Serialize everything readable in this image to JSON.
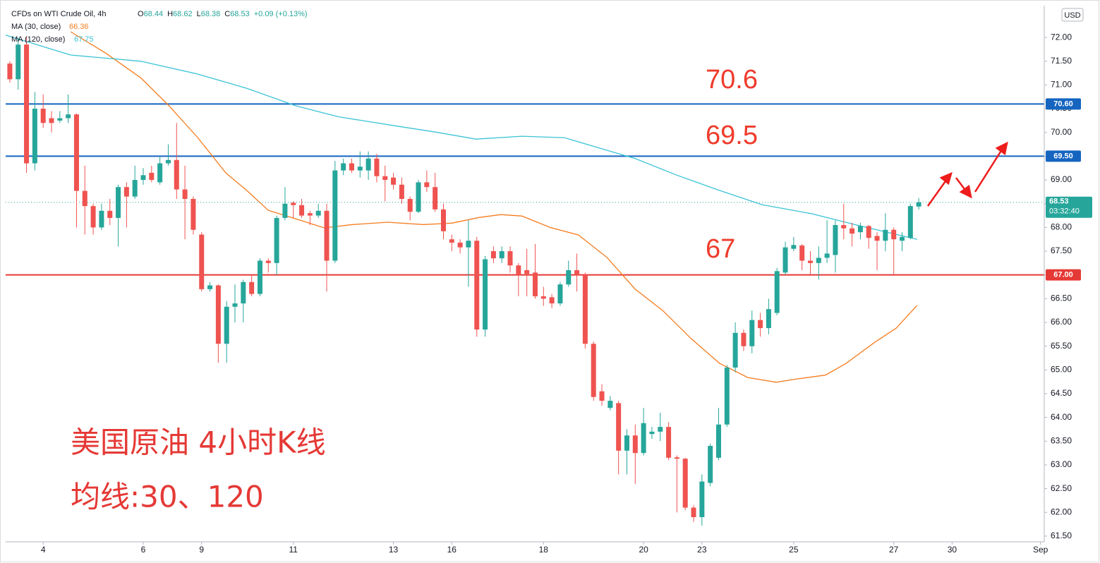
{
  "chart_data": {
    "type": "candlestick",
    "symbol": "CFDs on WTI Crude Oil, 4h",
    "ohlc_legend": [
      {
        "key": "O",
        "value": "68.44"
      },
      {
        "key": "H",
        "value": "68.62"
      },
      {
        "key": "L",
        "value": "68.38"
      },
      {
        "key": "C",
        "value": "68.53"
      }
    ],
    "change_legend": "+0.09 (+0.13%)",
    "currency": "USD",
    "up_color": "#26a69a",
    "down_color": "#ef5350",
    "ohlc": [
      [
        71.45,
        71.5,
        71.05,
        71.12
      ],
      [
        71.12,
        72.0,
        70.9,
        71.85
      ],
      [
        71.85,
        72.0,
        69.15,
        69.35
      ],
      [
        69.35,
        70.85,
        69.2,
        70.5
      ],
      [
        70.5,
        70.8,
        70.1,
        70.2
      ],
      [
        70.3,
        70.45,
        70.0,
        70.2
      ],
      [
        70.25,
        70.45,
        70.2,
        70.3
      ],
      [
        70.3,
        70.8,
        70.2,
        70.38
      ],
      [
        70.38,
        70.4,
        68.0,
        68.77
      ],
      [
        68.77,
        69.3,
        67.85,
        68.45
      ],
      [
        68.45,
        68.5,
        67.85,
        68.0
      ],
      [
        68.0,
        68.5,
        67.95,
        68.35
      ],
      [
        68.35,
        68.6,
        68.05,
        68.2
      ],
      [
        68.2,
        68.9,
        67.6,
        68.85
      ],
      [
        68.85,
        68.95,
        68.0,
        68.65
      ],
      [
        68.65,
        69.3,
        68.6,
        69.0
      ],
      [
        69.0,
        69.25,
        68.9,
        69.1
      ],
      [
        69.15,
        69.3,
        68.95,
        69.0
      ],
      [
        68.95,
        69.5,
        68.9,
        69.35
      ],
      [
        69.35,
        69.75,
        69.3,
        69.42
      ],
      [
        69.42,
        70.2,
        68.6,
        68.8
      ],
      [
        68.8,
        69.3,
        67.75,
        68.6
      ],
      [
        68.6,
        68.65,
        67.85,
        67.95
      ],
      [
        67.85,
        67.9,
        66.65,
        66.7
      ],
      [
        66.7,
        66.85,
        66.65,
        66.78
      ],
      [
        66.78,
        66.8,
        65.15,
        65.55
      ],
      [
        65.55,
        66.45,
        65.15,
        66.33
      ],
      [
        66.33,
        66.8,
        66.0,
        66.4
      ],
      [
        66.4,
        66.9,
        66.0,
        66.85
      ],
      [
        66.85,
        67.0,
        66.55,
        66.6
      ],
      [
        66.6,
        67.35,
        66.55,
        67.3
      ],
      [
        67.3,
        67.35,
        67.05,
        67.25
      ],
      [
        67.25,
        68.25,
        67.0,
        68.2
      ],
      [
        68.2,
        68.85,
        68.15,
        68.5
      ],
      [
        68.52,
        68.55,
        68.2,
        68.47
      ],
      [
        68.47,
        68.6,
        68.2,
        68.25
      ],
      [
        68.3,
        68.35,
        68.05,
        68.25
      ],
      [
        68.25,
        68.5,
        68.2,
        68.35
      ],
      [
        68.35,
        68.5,
        66.65,
        67.3
      ],
      [
        67.3,
        69.4,
        67.25,
        69.2
      ],
      [
        69.2,
        69.45,
        69.1,
        69.35
      ],
      [
        69.35,
        69.45,
        69.15,
        69.2
      ],
      [
        69.2,
        69.6,
        69.05,
        69.28
      ],
      [
        69.2,
        69.6,
        69.0,
        69.45
      ],
      [
        69.45,
        69.55,
        68.95,
        69.08
      ],
      [
        69.08,
        69.3,
        68.55,
        69.0
      ],
      [
        69.05,
        69.15,
        68.8,
        68.9
      ],
      [
        68.9,
        69.05,
        68.5,
        68.6
      ],
      [
        68.6,
        68.65,
        68.15,
        68.33
      ],
      [
        68.33,
        69.0,
        68.3,
        68.95
      ],
      [
        68.95,
        69.2,
        68.75,
        68.85
      ],
      [
        68.85,
        69.15,
        68.33,
        68.38
      ],
      [
        68.38,
        68.5,
        67.75,
        67.92
      ],
      [
        67.75,
        67.85,
        67.5,
        67.68
      ],
      [
        67.68,
        67.75,
        67.45,
        67.58
      ],
      [
        67.58,
        68.15,
        66.75,
        67.72
      ],
      [
        67.72,
        67.8,
        65.7,
        65.85
      ],
      [
        65.85,
        67.4,
        65.7,
        67.33
      ],
      [
        67.5,
        67.6,
        67.25,
        67.35
      ],
      [
        67.35,
        67.6,
        67.25,
        67.5
      ],
      [
        67.5,
        67.6,
        67.05,
        67.2
      ],
      [
        67.2,
        67.25,
        66.55,
        67.0
      ],
      [
        67.1,
        67.55,
        66.55,
        67.02
      ],
      [
        67.05,
        67.65,
        66.5,
        66.55
      ],
      [
        66.55,
        66.75,
        66.35,
        66.5
      ],
      [
        66.53,
        66.6,
        66.3,
        66.4
      ],
      [
        66.4,
        66.85,
        66.35,
        66.8
      ],
      [
        66.8,
        67.3,
        66.75,
        67.1
      ],
      [
        67.1,
        67.45,
        66.65,
        67.0
      ],
      [
        67.0,
        67.05,
        65.45,
        65.55
      ],
      [
        65.55,
        65.6,
        64.35,
        64.43
      ],
      [
        64.55,
        64.7,
        64.25,
        64.35
      ],
      [
        64.2,
        64.45,
        64.15,
        64.35
      ],
      [
        64.3,
        64.35,
        62.8,
        63.3
      ],
      [
        63.3,
        63.75,
        62.8,
        63.62
      ],
      [
        63.62,
        63.85,
        62.6,
        63.25
      ],
      [
        63.25,
        64.2,
        63.2,
        63.88
      ],
      [
        63.65,
        63.8,
        63.55,
        63.7
      ],
      [
        63.7,
        64.1,
        63.5,
        63.8
      ],
      [
        63.8,
        63.9,
        63.1,
        63.15
      ],
      [
        63.16,
        63.2,
        62.0,
        63.13
      ],
      [
        63.13,
        63.15,
        62.05,
        62.1
      ],
      [
        62.1,
        62.15,
        61.8,
        61.9
      ],
      [
        61.9,
        62.8,
        61.72,
        62.65
      ],
      [
        62.62,
        63.45,
        62.55,
        63.4
      ],
      [
        63.15,
        64.2,
        63.1,
        63.85
      ],
      [
        63.85,
        65.1,
        63.8,
        65.05
      ],
      [
        65.05,
        66.0,
        64.95,
        65.78
      ],
      [
        65.78,
        65.85,
        65.4,
        65.5
      ],
      [
        65.5,
        66.25,
        65.35,
        66.05
      ],
      [
        66.05,
        66.2,
        65.7,
        65.88
      ],
      [
        65.88,
        66.5,
        65.75,
        66.28
      ],
      [
        66.2,
        67.15,
        66.15,
        67.08
      ],
      [
        67.05,
        67.7,
        67.0,
        67.58
      ],
      [
        67.55,
        67.8,
        67.5,
        67.63
      ],
      [
        67.62,
        67.65,
        67.1,
        67.3
      ],
      [
        67.3,
        67.5,
        67.0,
        67.25
      ],
      [
        67.25,
        67.6,
        66.9,
        67.36
      ],
      [
        67.36,
        68.15,
        67.25,
        67.45
      ],
      [
        67.42,
        68.15,
        67.05,
        68.05
      ],
      [
        68.05,
        68.5,
        67.75,
        67.98
      ],
      [
        67.98,
        68.1,
        67.6,
        67.87
      ],
      [
        67.9,
        68.1,
        67.75,
        68.03
      ],
      [
        68.03,
        68.05,
        67.55,
        67.78
      ],
      [
        67.82,
        67.9,
        67.1,
        67.72
      ],
      [
        67.72,
        68.3,
        67.5,
        67.95
      ],
      [
        67.95,
        68.0,
        67.0,
        67.75
      ],
      [
        67.72,
        67.9,
        67.5,
        67.8
      ],
      [
        67.78,
        68.5,
        67.75,
        68.45
      ],
      [
        68.44,
        68.62,
        68.38,
        68.53
      ]
    ],
    "series": [
      {
        "name": "MA (30, close)",
        "last_label": "66.36",
        "color": "#f57c1f",
        "x": [
          7.3,
          11.5,
          15.7,
          19.1,
          22.5,
          25.9,
          28.4,
          31,
          34.3,
          37.7,
          41.1,
          45.3,
          49.6,
          53,
          56.3,
          58.9,
          61.4,
          64.8,
          68.2,
          71.6,
          75,
          78.3,
          81.7,
          85.1,
          88.5,
          91.9,
          94.4,
          97.8,
          100.3,
          103.7,
          106.3,
          108.8
        ],
        "values": [
          72.12,
          71.67,
          71.15,
          70.56,
          69.9,
          69.15,
          68.78,
          68.36,
          68.18,
          67.99,
          68.06,
          68.11,
          68.06,
          68.09,
          68.21,
          68.27,
          68.24,
          68.0,
          67.84,
          67.37,
          66.7,
          66.25,
          65.66,
          65.14,
          64.84,
          64.74,
          64.81,
          64.89,
          65.14,
          65.58,
          65.88,
          66.36
        ]
      },
      {
        "name": "MA (120, close)",
        "last_label": "67.75",
        "color": "#3bc3d6",
        "x": [
          -0.5,
          7.3,
          15.7,
          22.5,
          28.4,
          34.3,
          39.4,
          46.2,
          51.3,
          55.9,
          61.4,
          66.5,
          70.7,
          75,
          80,
          85.1,
          90.2,
          96.1,
          102,
          108.8
        ],
        "values": [
          72.05,
          71.63,
          71.5,
          71.23,
          70.93,
          70.56,
          70.33,
          70.14,
          70.0,
          69.86,
          69.92,
          69.89,
          69.67,
          69.45,
          69.1,
          68.78,
          68.48,
          68.29,
          68.03,
          67.75
        ]
      }
    ],
    "levels": [
      {
        "value": 70.6,
        "label": "70.60",
        "annotation": "70.6",
        "color": "#1565c0"
      },
      {
        "value": 69.5,
        "label": "69.50",
        "annotation": "69.5",
        "color": "#1565c0"
      },
      {
        "value": 67.0,
        "label": "67.00",
        "annotation": "67",
        "color": "#e53935"
      }
    ],
    "last_price": {
      "value": 68.53,
      "label": "68.53",
      "countdown": "03:32:40",
      "color": "#26a69a"
    },
    "xlim": [
      -0.5,
      124.05
    ],
    "xticks": [
      {
        "value": 4,
        "label": "4"
      },
      {
        "value": 16,
        "label": "6"
      },
      {
        "value": 23,
        "label": "9"
      },
      {
        "value": 34,
        "label": "11"
      },
      {
        "value": 46,
        "label": "13"
      },
      {
        "value": 53,
        "label": "16"
      },
      {
        "value": 64,
        "label": "18"
      },
      {
        "value": 76,
        "label": "20"
      },
      {
        "value": 83,
        "label": "23"
      },
      {
        "value": 94,
        "label": "25"
      },
      {
        "value": 106,
        "label": "27"
      },
      {
        "value": 113,
        "label": "30"
      },
      {
        "value": 123.6,
        "label": "Sep"
      }
    ],
    "ylim": [
      61.38,
      72.67
    ],
    "yticks": [
      {
        "value": 61.5,
        "label": "61.50"
      },
      {
        "value": 62,
        "label": "62.00"
      },
      {
        "value": 62.5,
        "label": "62.50"
      },
      {
        "value": 63,
        "label": "63.00"
      },
      {
        "value": 63.5,
        "label": "63.50"
      },
      {
        "value": 64,
        "label": "64.00"
      },
      {
        "value": 64.5,
        "label": "64.50"
      },
      {
        "value": 65,
        "label": "65.00"
      },
      {
        "value": 65.5,
        "label": "65.50"
      },
      {
        "value": 66,
        "label": "66.00"
      },
      {
        "value": 66.5,
        "label": "66.50"
      },
      {
        "value": 67,
        "label": "67.00"
      },
      {
        "value": 67.5,
        "label": "67.50"
      },
      {
        "value": 68,
        "label": "68.00"
      },
      {
        "value": 68.5,
        "label": "68.50"
      },
      {
        "value": 69,
        "label": "69.00"
      },
      {
        "value": 69.5,
        "label": "69.50"
      },
      {
        "value": 70,
        "label": "70.00"
      },
      {
        "value": 70.5,
        "label": "70.50"
      },
      {
        "value": 71,
        "label": "71.00"
      },
      {
        "value": 71.5,
        "label": "71.50"
      },
      {
        "value": 72,
        "label": "72.00"
      }
    ],
    "grid": false,
    "notes": [
      "美国原油 4小时K线",
      "均线:30、120"
    ]
  }
}
